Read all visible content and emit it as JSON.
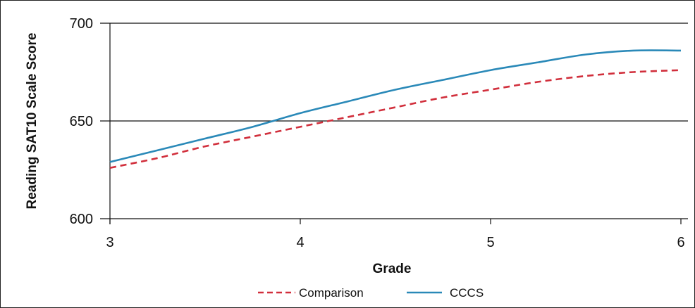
{
  "chart_data": {
    "type": "line",
    "title": "",
    "xlabel": "Grade",
    "ylabel": "Reading SAT10 Scale Score",
    "xlim": [
      3,
      6
    ],
    "ylim": [
      600,
      700
    ],
    "x_ticks": [
      "3",
      "4",
      "5",
      "6"
    ],
    "y_ticks": [
      "600",
      "650",
      "700"
    ],
    "gridlines_y": [
      650,
      700
    ],
    "legend_position": "bottom-center",
    "series": [
      {
        "name": "Comparison",
        "color": "#d12f3c",
        "dash": "dashed",
        "x": [
          3.0,
          3.25,
          3.5,
          3.75,
          4.0,
          4.25,
          4.5,
          4.75,
          5.0,
          5.25,
          5.5,
          5.75,
          6.0
        ],
        "y": [
          626,
          631,
          637,
          642,
          647,
          652,
          657,
          662,
          666,
          670,
          673,
          675,
          676
        ]
      },
      {
        "name": "CCCS",
        "color": "#2a89b8",
        "dash": "solid",
        "x": [
          3.0,
          3.25,
          3.5,
          3.75,
          4.0,
          4.25,
          4.5,
          4.75,
          5.0,
          5.25,
          5.5,
          5.75,
          6.0
        ],
        "y": [
          629,
          635,
          641,
          647,
          654,
          660,
          666,
          671,
          676,
          680,
          684,
          686,
          686
        ]
      }
    ]
  }
}
